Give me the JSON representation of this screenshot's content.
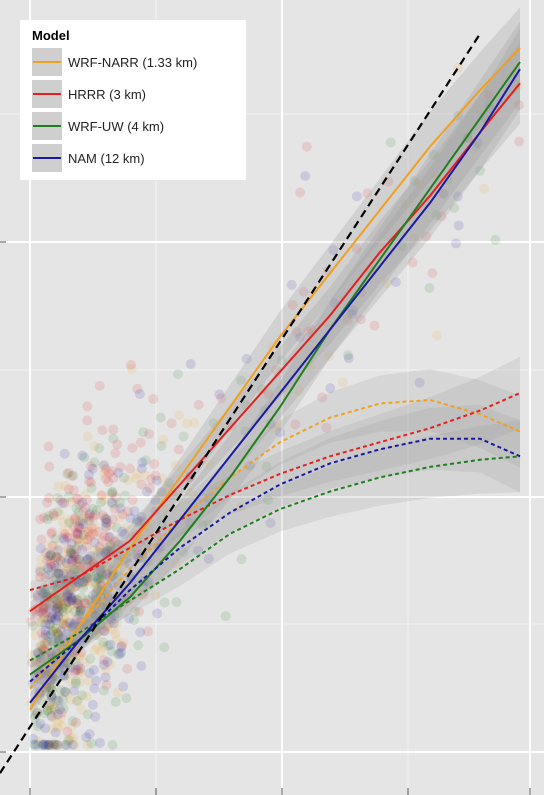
{
  "chart_data": {
    "type": "scatter",
    "legend": {
      "title": "Model",
      "position": "top-left",
      "items": [
        {
          "label": "WRF-NARR (1.33 km)",
          "color": "#f0a020"
        },
        {
          "label": "HRRR (3 km)",
          "color": "#e32020"
        },
        {
          "label": "WRF-UW (4 km)",
          "color": "#1f7f1f"
        },
        {
          "label": "NAM (12 km)",
          "color": "#1a1aa0"
        }
      ]
    },
    "grid": true,
    "background": "#e5e5e5",
    "xlim": [
      0,
      10
    ],
    "ylim": [
      0,
      10
    ],
    "one_to_one_line": {
      "style": "dashed",
      "color": "#000000",
      "points": [
        [
          -0.6,
          -0.3
        ],
        [
          9.0,
          10.2
        ]
      ]
    },
    "series": [
      {
        "name": "WRF-NARR (1.33 km)",
        "color": "#f0a020",
        "solid_fit": [
          [
            0.0,
            0.6
          ],
          [
            1.0,
            1.8
          ],
          [
            2.0,
            2.9
          ],
          [
            3.0,
            3.9
          ],
          [
            4.0,
            4.9
          ],
          [
            5.0,
            5.9
          ],
          [
            6.0,
            6.8
          ],
          [
            7.0,
            7.7
          ],
          [
            8.0,
            8.6
          ],
          [
            9.0,
            9.4
          ],
          [
            9.8,
            10.0
          ]
        ],
        "dashed_fit": [
          [
            0.0,
            0.9
          ],
          [
            1.0,
            1.8
          ],
          [
            2.0,
            2.6
          ],
          [
            3.0,
            3.3
          ],
          [
            4.0,
            3.9
          ],
          [
            5.0,
            4.4
          ],
          [
            6.0,
            4.75
          ],
          [
            7.0,
            4.95
          ],
          [
            8.0,
            5.0
          ],
          [
            9.0,
            4.8
          ],
          [
            9.8,
            4.55
          ]
        ]
      },
      {
        "name": "HRRR (3 km)",
        "color": "#e32020",
        "solid_fit": [
          [
            0.0,
            2.0
          ],
          [
            1.0,
            2.5
          ],
          [
            2.0,
            3.0
          ],
          [
            3.0,
            3.8
          ],
          [
            4.0,
            4.6
          ],
          [
            5.0,
            5.4
          ],
          [
            6.0,
            6.2
          ],
          [
            7.0,
            7.1
          ],
          [
            8.0,
            7.9
          ],
          [
            9.0,
            8.8
          ],
          [
            9.8,
            9.5
          ]
        ],
        "dashed_fit": [
          [
            0.0,
            2.3
          ],
          [
            1.0,
            2.5
          ],
          [
            2.0,
            2.9
          ],
          [
            3.0,
            3.3
          ],
          [
            4.0,
            3.65
          ],
          [
            5.0,
            3.95
          ],
          [
            6.0,
            4.2
          ],
          [
            7.0,
            4.4
          ],
          [
            8.0,
            4.6
          ],
          [
            9.0,
            4.85
          ],
          [
            9.8,
            5.1
          ]
        ]
      },
      {
        "name": "WRF-UW (4 km)",
        "color": "#1f7f1f",
        "solid_fit": [
          [
            0.0,
            1.1
          ],
          [
            1.0,
            1.6
          ],
          [
            2.0,
            2.2
          ],
          [
            3.0,
            3.0
          ],
          [
            4.0,
            3.9
          ],
          [
            5.0,
            4.9
          ],
          [
            6.0,
            6.0
          ],
          [
            7.0,
            7.0
          ],
          [
            8.0,
            8.0
          ],
          [
            9.0,
            9.0
          ],
          [
            9.8,
            9.8
          ]
        ],
        "dashed_fit": [
          [
            0.0,
            1.3
          ],
          [
            1.0,
            1.7
          ],
          [
            2.0,
            2.15
          ],
          [
            3.0,
            2.6
          ],
          [
            4.0,
            3.1
          ],
          [
            5.0,
            3.45
          ],
          [
            6.0,
            3.7
          ],
          [
            7.0,
            3.9
          ],
          [
            8.0,
            4.05
          ],
          [
            9.0,
            4.15
          ],
          [
            9.8,
            4.2
          ]
        ]
      },
      {
        "name": "NAM (12 km)",
        "color": "#1a1aa0",
        "solid_fit": [
          [
            0.0,
            0.7
          ],
          [
            1.0,
            1.6
          ],
          [
            2.0,
            2.4
          ],
          [
            3.0,
            3.3
          ],
          [
            4.0,
            4.2
          ],
          [
            5.0,
            5.1
          ],
          [
            6.0,
            6.0
          ],
          [
            7.0,
            6.9
          ],
          [
            8.0,
            7.8
          ],
          [
            9.0,
            8.8
          ],
          [
            9.8,
            9.7
          ]
        ],
        "dashed_fit": [
          [
            0.0,
            1.0
          ],
          [
            1.0,
            1.6
          ],
          [
            2.0,
            2.3
          ],
          [
            3.0,
            2.9
          ],
          [
            4.0,
            3.4
          ],
          [
            5.0,
            3.8
          ],
          [
            6.0,
            4.1
          ],
          [
            7.0,
            4.3
          ],
          [
            8.0,
            4.45
          ],
          [
            9.0,
            4.45
          ],
          [
            9.8,
            4.2
          ]
        ]
      }
    ]
  }
}
